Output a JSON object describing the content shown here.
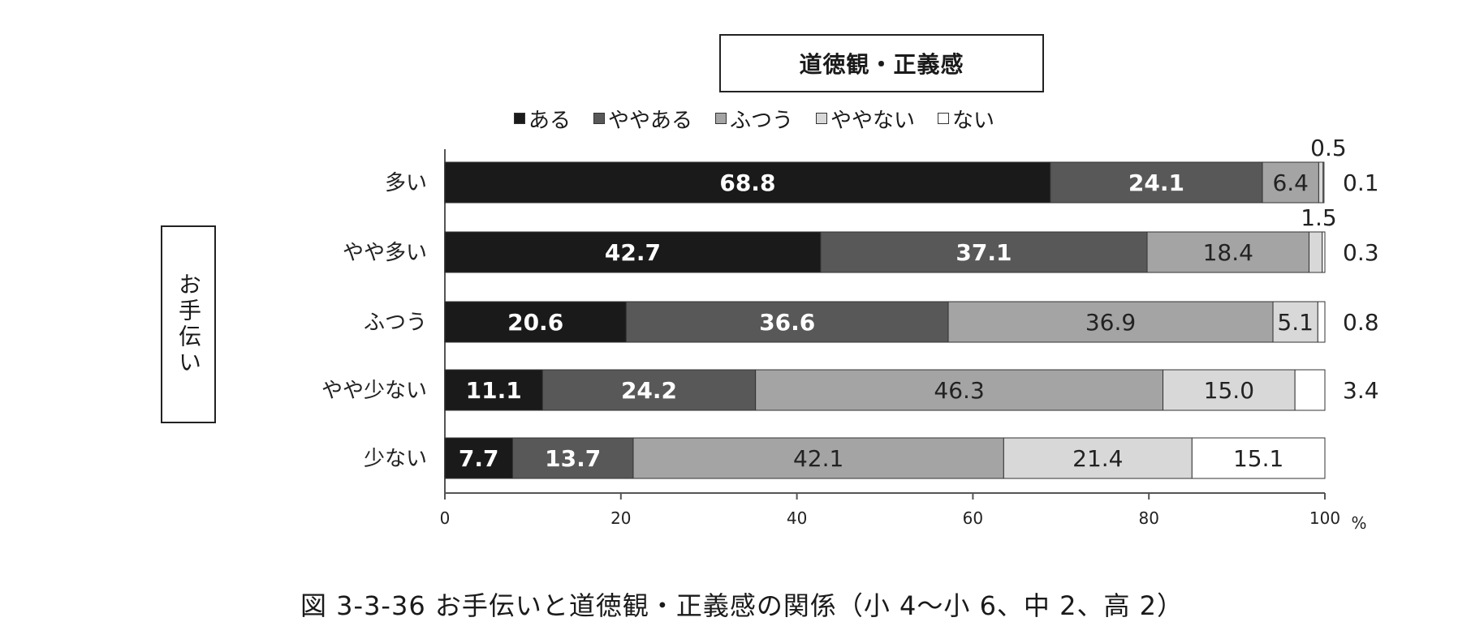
{
  "chart_data": {
    "type": "bar",
    "orientation": "horizontal",
    "stacked": true,
    "title": "道徳観・正義感",
    "side_label": "お手伝い",
    "caption": "図 3-3-36 お手伝いと道徳観・正義感の関係（小 4〜小 6、中 2、高 2）",
    "categories": [
      "多い",
      "やや多い",
      "ふつう",
      "やや少ない",
      "少ない"
    ],
    "series": [
      {
        "name": "ある",
        "color": "#1a1a1a",
        "values": [
          68.8,
          42.7,
          20.6,
          11.1,
          7.7
        ]
      },
      {
        "name": "ややある",
        "color": "#585858",
        "values": [
          24.1,
          37.1,
          36.6,
          24.2,
          13.7
        ]
      },
      {
        "name": "ふつう",
        "color": "#a4a4a4",
        "values": [
          6.4,
          18.4,
          36.9,
          46.3,
          42.1
        ]
      },
      {
        "name": "ややない",
        "color": "#d8d8d8",
        "values": [
          0.5,
          1.5,
          5.1,
          15.0,
          21.4
        ]
      },
      {
        "name": "ない",
        "color": "#ffffff",
        "values": [
          0.1,
          0.3,
          0.8,
          3.4,
          15.1
        ]
      }
    ],
    "x_ticks": [
      "0",
      "20",
      "40",
      "60",
      "80",
      "100"
    ],
    "x_unit": "%",
    "xlim": [
      0,
      100
    ],
    "legend_position": "top",
    "label_text": [
      [
        "68.8",
        "24.1",
        "6.4",
        "0.5",
        "0.1"
      ],
      [
        "42.7",
        "37.1",
        "18.4",
        "1.5",
        "0.3"
      ],
      [
        "20.6",
        "36.6",
        "36.9",
        "5.1",
        "0.8"
      ],
      [
        "11.1",
        "24.2",
        "46.3",
        "15.0",
        "3.4"
      ],
      [
        "7.7",
        "13.7",
        "42.1",
        "21.4",
        "15.1"
      ]
    ]
  }
}
